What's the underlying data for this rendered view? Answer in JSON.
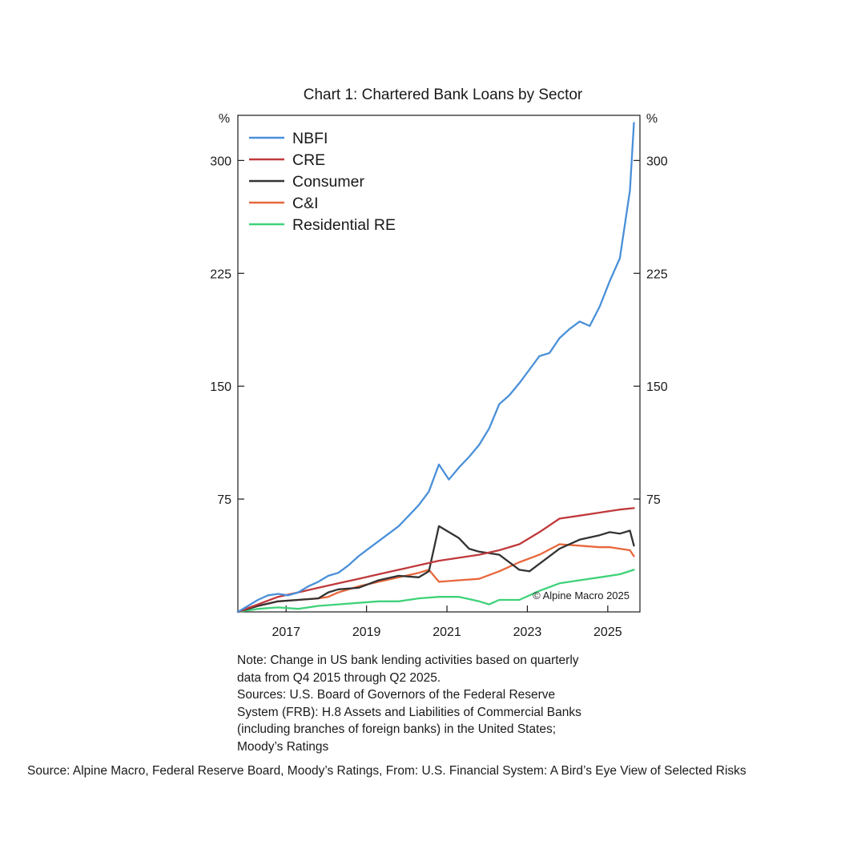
{
  "chart_data": {
    "type": "line",
    "title": "Chart 1: Chartered Bank Loans by Sector",
    "y_unit_left": "%",
    "y_unit_right": "%",
    "ylim": [
      0,
      330
    ],
    "yticks": [
      75,
      150,
      225,
      300
    ],
    "xlim": [
      2016.0,
      2025.5
    ],
    "xticks": [
      2017,
      2019,
      2021,
      2023,
      2025
    ],
    "grid": false,
    "legend_position": "top-left",
    "watermark": "© Alpine Macro 2025",
    "series": [
      {
        "name": "NBFI",
        "color": "#4a90d9",
        "points": [
          [
            2016.0,
            0
          ],
          [
            2016.25,
            4
          ],
          [
            2016.5,
            8
          ],
          [
            2016.75,
            11
          ],
          [
            2017.0,
            12
          ],
          [
            2017.25,
            11
          ],
          [
            2017.5,
            13
          ],
          [
            2017.75,
            17
          ],
          [
            2018.0,
            20
          ],
          [
            2018.25,
            24
          ],
          [
            2018.5,
            26
          ],
          [
            2018.75,
            31
          ],
          [
            2019.0,
            37
          ],
          [
            2019.25,
            42
          ],
          [
            2019.5,
            47
          ],
          [
            2019.75,
            52
          ],
          [
            2020.0,
            57
          ],
          [
            2020.25,
            64
          ],
          [
            2020.5,
            71
          ],
          [
            2020.75,
            80
          ],
          [
            2021.0,
            98
          ],
          [
            2021.25,
            88
          ],
          [
            2021.5,
            96
          ],
          [
            2021.75,
            103
          ],
          [
            2022.0,
            111
          ],
          [
            2022.25,
            122
          ],
          [
            2022.5,
            138
          ],
          [
            2022.75,
            144
          ],
          [
            2023.0,
            152
          ],
          [
            2023.25,
            161
          ],
          [
            2023.5,
            170
          ],
          [
            2023.75,
            172
          ],
          [
            2024.0,
            182
          ],
          [
            2024.25,
            188
          ],
          [
            2024.5,
            193
          ],
          [
            2024.75,
            190
          ],
          [
            2025.0,
            203
          ],
          [
            2025.25,
            220
          ],
          [
            2025.5,
            235
          ],
          [
            2025.75,
            280
          ],
          [
            2026.0,
            325
          ]
        ]
      },
      {
        "name": "CRE",
        "color": "#c0393b",
        "points": [
          [
            2016.0,
            0
          ],
          [
            2016.5,
            5
          ],
          [
            2017.0,
            10
          ],
          [
            2017.5,
            13
          ],
          [
            2018.0,
            16
          ],
          [
            2018.5,
            19
          ],
          [
            2019.0,
            22
          ],
          [
            2019.5,
            25
          ],
          [
            2020.0,
            28
          ],
          [
            2020.5,
            31
          ],
          [
            2021.0,
            34
          ],
          [
            2021.5,
            36
          ],
          [
            2022.0,
            38
          ],
          [
            2022.5,
            41
          ],
          [
            2023.0,
            45
          ],
          [
            2023.5,
            53
          ],
          [
            2024.0,
            62
          ],
          [
            2024.5,
            64
          ],
          [
            2025.0,
            66
          ],
          [
            2025.5,
            68
          ],
          [
            2026.0,
            69
          ]
        ]
      },
      {
        "name": "Consumer",
        "color": "#333333",
        "points": [
          [
            2016.0,
            0
          ],
          [
            2016.5,
            4
          ],
          [
            2017.0,
            7
          ],
          [
            2017.5,
            8
          ],
          [
            2018.0,
            9
          ],
          [
            2018.25,
            13
          ],
          [
            2018.5,
            15
          ],
          [
            2019.0,
            16
          ],
          [
            2019.5,
            21
          ],
          [
            2020.0,
            24
          ],
          [
            2020.5,
            23
          ],
          [
            2020.75,
            27
          ],
          [
            2021.0,
            57
          ],
          [
            2021.5,
            49
          ],
          [
            2021.75,
            42
          ],
          [
            2022.0,
            40
          ],
          [
            2022.5,
            38
          ],
          [
            2023.0,
            28
          ],
          [
            2023.25,
            27
          ],
          [
            2023.5,
            32
          ],
          [
            2024.0,
            42
          ],
          [
            2024.5,
            48
          ],
          [
            2025.0,
            51
          ],
          [
            2025.25,
            53
          ],
          [
            2025.5,
            52
          ],
          [
            2025.75,
            54
          ],
          [
            2026.0,
            44
          ]
        ]
      },
      {
        "name": "C&I",
        "color": "#e8673c",
        "points": [
          [
            2016.0,
            0
          ],
          [
            2016.5,
            4
          ],
          [
            2017.0,
            7
          ],
          [
            2017.5,
            8
          ],
          [
            2018.0,
            9
          ],
          [
            2018.25,
            10
          ],
          [
            2018.5,
            13
          ],
          [
            2019.0,
            17
          ],
          [
            2019.5,
            20
          ],
          [
            2020.0,
            23
          ],
          [
            2020.5,
            26
          ],
          [
            2020.75,
            28
          ],
          [
            2021.0,
            20
          ],
          [
            2021.5,
            21
          ],
          [
            2022.0,
            22
          ],
          [
            2022.5,
            27
          ],
          [
            2023.0,
            33
          ],
          [
            2023.5,
            38
          ],
          [
            2024.0,
            45
          ],
          [
            2024.5,
            44
          ],
          [
            2025.0,
            43
          ],
          [
            2025.25,
            43
          ],
          [
            2025.5,
            42
          ],
          [
            2025.75,
            41
          ],
          [
            2026.0,
            37
          ]
        ]
      },
      {
        "name": "Residential RE",
        "color": "#3fd27a",
        "points": [
          [
            2016.0,
            0
          ],
          [
            2016.5,
            2
          ],
          [
            2017.0,
            3
          ],
          [
            2017.5,
            2
          ],
          [
            2018.0,
            4
          ],
          [
            2018.5,
            5
          ],
          [
            2019.0,
            6
          ],
          [
            2019.5,
            7
          ],
          [
            2020.0,
            7
          ],
          [
            2020.5,
            9
          ],
          [
            2021.0,
            10
          ],
          [
            2021.5,
            10
          ],
          [
            2022.0,
            7
          ],
          [
            2022.25,
            5
          ],
          [
            2022.5,
            8
          ],
          [
            2023.0,
            8
          ],
          [
            2023.5,
            14
          ],
          [
            2024.0,
            19
          ],
          [
            2024.5,
            21
          ],
          [
            2025.0,
            23
          ],
          [
            2025.5,
            25
          ],
          [
            2026.0,
            28
          ]
        ]
      }
    ]
  },
  "note_lines": [
    "Note: Change in US bank lending activities based on quarterly",
    "data from Q4 2015 through Q2 2025.",
    "Sources: U.S. Board of Governors of the Federal Reserve",
    "System (FRB): H.8 Assets and Liabilities of Commercial Banks",
    "(including branches of foreign banks) in the United States;",
    "Moody’s Ratings"
  ],
  "source_text": "Source:  Alpine Macro, Federal Reserve Board, Moody’s Ratings, From:   U.S. Financial System: A Bird’s Eye View of Selected Risks"
}
